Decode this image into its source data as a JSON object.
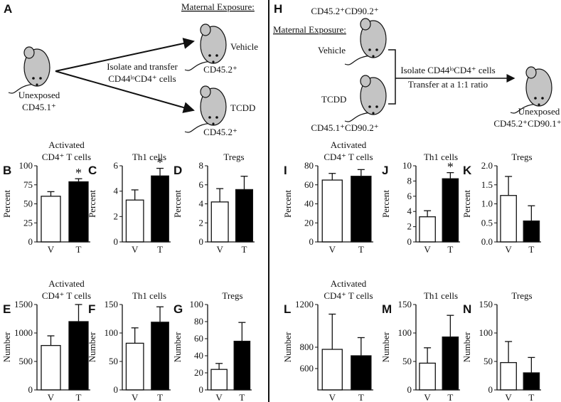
{
  "diagrams": {
    "A": {
      "letter": "A",
      "maternal_exposure": "Maternal Exposure:",
      "vehicle": "Vehicle",
      "tcdd": "TCDD",
      "source": "Unexposed",
      "source_marker": "CD45.1⁺",
      "transfer_1": "Isolate and transfer",
      "transfer_2": "CD44ˡᵒCD4⁺ cells",
      "recipient_1": "CD45.2⁺",
      "recipient_2": "CD45.2⁺"
    },
    "H": {
      "letter": "H",
      "donor_1": "CD45.2⁺CD90.2⁺",
      "maternal_exposure": "Maternal Exposure:",
      "vehicle": "Vehicle",
      "tcdd": "TCDD",
      "donor_2": "CD45.1⁺CD90.2⁺",
      "transfer_1": "Isolate CD44ˡᵒCD4⁺ cells",
      "transfer_2": "Transfer at a 1:1 ratio",
      "recipient": "Unexposed",
      "recipient_marker": "CD45.2⁺CD90.1⁺"
    }
  },
  "chart_data": [
    {
      "type": "bar",
      "panel": "B",
      "title_lines": [
        "Activated",
        "CD4⁺ T cells"
      ],
      "ylabel": "Percent",
      "categories": [
        "V",
        "T"
      ],
      "values": [
        60,
        79
      ],
      "errors": [
        6,
        4
      ],
      "colors": [
        "#ffffff",
        "#000000"
      ],
      "ylim": [
        0,
        100
      ],
      "yticks": [
        0,
        25,
        50,
        75,
        100
      ],
      "annotations": [
        {
          "category": "T",
          "text": "*"
        }
      ]
    },
    {
      "type": "bar",
      "panel": "C",
      "title_lines": [
        "Th1 cells"
      ],
      "ylabel": "Percent",
      "categories": [
        "V",
        "T"
      ],
      "values": [
        3.3,
        5.2
      ],
      "errors": [
        0.8,
        0.6
      ],
      "colors": [
        "#ffffff",
        "#000000"
      ],
      "ylim": [
        0,
        6
      ],
      "yticks": [
        0,
        2,
        4,
        6
      ],
      "annotations": [
        {
          "category": "T",
          "text": "*"
        }
      ]
    },
    {
      "type": "bar",
      "panel": "D",
      "title_lines": [
        "Tregs"
      ],
      "ylabel": "Percent",
      "categories": [
        "V",
        "T"
      ],
      "values": [
        4.2,
        5.5
      ],
      "errors": [
        1.4,
        1.4
      ],
      "colors": [
        "#ffffff",
        "#000000"
      ],
      "ylim": [
        0,
        8
      ],
      "yticks": [
        0,
        2,
        4,
        6,
        8
      ],
      "annotations": []
    },
    {
      "type": "bar",
      "panel": "E",
      "title_lines": [
        "Activated",
        "CD4⁺ T cells"
      ],
      "ylabel": "Number",
      "categories": [
        "V",
        "T"
      ],
      "values": [
        780,
        1200
      ],
      "errors": [
        170,
        300
      ],
      "colors": [
        "#ffffff",
        "#000000"
      ],
      "ylim": [
        0,
        1500
      ],
      "yticks": [
        0,
        500,
        1000,
        1500
      ],
      "annotations": []
    },
    {
      "type": "bar",
      "panel": "F",
      "title_lines": [
        "Th1 cells"
      ],
      "ylabel": "Number",
      "categories": [
        "V",
        "T"
      ],
      "values": [
        82,
        119
      ],
      "errors": [
        27,
        27
      ],
      "colors": [
        "#ffffff",
        "#000000"
      ],
      "ylim": [
        0,
        150
      ],
      "yticks": [
        0,
        50,
        100,
        150
      ],
      "annotations": []
    },
    {
      "type": "bar",
      "panel": "G",
      "title_lines": [
        "Tregs"
      ],
      "ylabel": "Number",
      "categories": [
        "V",
        "T"
      ],
      "values": [
        24,
        57
      ],
      "errors": [
        7,
        22
      ],
      "colors": [
        "#ffffff",
        "#000000"
      ],
      "ylim": [
        0,
        100
      ],
      "yticks": [
        0,
        20,
        40,
        60,
        80,
        100
      ],
      "annotations": []
    },
    {
      "type": "bar",
      "panel": "I",
      "title_lines": [
        "Activated",
        "CD4⁺ T cells"
      ],
      "ylabel": "Percent",
      "categories": [
        "V",
        "T"
      ],
      "values": [
        65,
        69
      ],
      "errors": [
        7,
        7
      ],
      "colors": [
        "#ffffff",
        "#000000"
      ],
      "ylim": [
        0,
        80
      ],
      "yticks": [
        0,
        20,
        40,
        60,
        80
      ],
      "annotations": []
    },
    {
      "type": "bar",
      "panel": "J",
      "title_lines": [
        "Th1 cells"
      ],
      "ylabel": "Percent",
      "categories": [
        "V",
        "T"
      ],
      "values": [
        3.3,
        8.3
      ],
      "errors": [
        0.8,
        0.8
      ],
      "colors": [
        "#ffffff",
        "#000000"
      ],
      "ylim": [
        0,
        10
      ],
      "yticks": [
        0,
        2,
        4,
        6,
        8,
        10
      ],
      "annotations": [
        {
          "category": "T",
          "text": "*"
        }
      ]
    },
    {
      "type": "bar",
      "panel": "K",
      "title_lines": [
        "Tregs"
      ],
      "ylabel": "Percent",
      "categories": [
        "V",
        "T"
      ],
      "values": [
        1.22,
        0.55
      ],
      "errors": [
        0.5,
        0.4
      ],
      "colors": [
        "#ffffff",
        "#000000"
      ],
      "ylim": [
        0,
        2
      ],
      "yticks": [
        {
          "value": 0,
          "label": "0.0"
        },
        {
          "value": 0.5,
          "label": "0.5"
        },
        {
          "value": 1,
          "label": "1.0"
        },
        {
          "value": 1.5,
          "label": "1.5"
        },
        {
          "value": 2,
          "label": "2.0"
        }
      ],
      "annotations": []
    },
    {
      "type": "bar",
      "panel": "L",
      "title_lines": [
        "Activated",
        "CD4⁺ T cells"
      ],
      "ylabel": "Number",
      "categories": [
        "V",
        "T"
      ],
      "values": [
        780,
        720
      ],
      "errors": [
        330,
        170
      ],
      "colors": [
        "#ffffff",
        "#000000"
      ],
      "ylim": [
        400,
        1200
      ],
      "yticks": [
        600,
        800,
        1200
      ],
      "annotations": []
    },
    {
      "type": "bar",
      "panel": "M",
      "title_lines": [
        "Th1 cells"
      ],
      "ylabel": "Number",
      "categories": [
        "V",
        "T"
      ],
      "values": [
        47,
        93
      ],
      "errors": [
        27,
        38
      ],
      "colors": [
        "#ffffff",
        "#000000"
      ],
      "ylim": [
        0,
        150
      ],
      "yticks": [
        0,
        50,
        100,
        150
      ],
      "annotations": []
    },
    {
      "type": "bar",
      "panel": "N",
      "title_lines": [
        "Tregs"
      ],
      "ylabel": "Number",
      "categories": [
        "V",
        "T"
      ],
      "values": [
        48,
        30
      ],
      "errors": [
        37,
        27
      ],
      "colors": [
        "#ffffff",
        "#000000"
      ],
      "ylim": [
        0,
        150
      ],
      "yticks": [
        0,
        50,
        100,
        150
      ],
      "annotations": []
    }
  ]
}
